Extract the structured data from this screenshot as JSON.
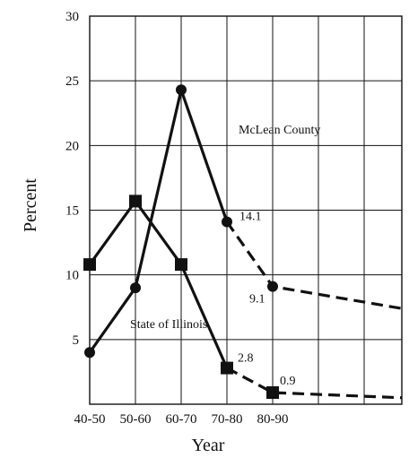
{
  "chart_data": {
    "type": "line",
    "xlabel": "Year",
    "ylabel": "Percent",
    "categories": [
      "40-50",
      "50-60",
      "60-70",
      "70-80",
      "80-90"
    ],
    "ylim": [
      0,
      30
    ],
    "yticks": [
      "5",
      "10",
      "15",
      "20",
      "25",
      "30"
    ],
    "grid": true,
    "series": [
      {
        "name": "McLean County",
        "marker": "circle",
        "values": [
          4.0,
          9.0,
          24.3,
          14.1,
          9.1
        ],
        "projected_end": 7.4,
        "dashed_from_index": 3,
        "data_labels": {
          "3": "14.1",
          "4": "9.1"
        }
      },
      {
        "name": "State of Illinois",
        "marker": "square",
        "values": [
          10.8,
          15.7,
          10.8,
          2.8,
          0.9
        ],
        "projected_end": 0.5,
        "dashed_from_index": 3,
        "data_labels": {
          "3": "2.8",
          "4": "0.9"
        }
      }
    ]
  }
}
